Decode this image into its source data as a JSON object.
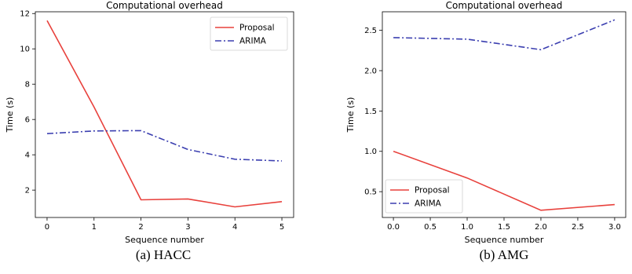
{
  "chart_data": [
    {
      "type": "line",
      "title": "Computational overhead",
      "xlabel": "Sequence number",
      "ylabel": "Time (s)",
      "caption": "(a) HACC",
      "xlim": [
        -0.25,
        5.25
      ],
      "ylim": [
        0.45,
        12.1
      ],
      "xticks": [
        0,
        1,
        2,
        3,
        4,
        5
      ],
      "xtick_labels": [
        "0",
        "1",
        "2",
        "3",
        "4",
        "5"
      ],
      "yticks": [
        2,
        4,
        6,
        8,
        10,
        12
      ],
      "ytick_labels": [
        "2",
        "4",
        "6",
        "8",
        "10",
        "12"
      ],
      "grid": false,
      "legend_position": "top-right",
      "x": [
        0,
        1,
        2,
        3,
        4,
        5
      ],
      "series": [
        {
          "name": "Proposal",
          "color": "#e8413c",
          "style": "solid",
          "values": [
            11.6,
            6.7,
            1.45,
            1.5,
            1.05,
            1.35
          ]
        },
        {
          "name": "ARIMA",
          "color": "#3b3fb0",
          "style": "dashdot",
          "values": [
            5.2,
            5.35,
            5.37,
            4.3,
            3.75,
            3.65
          ]
        }
      ]
    },
    {
      "type": "line",
      "title": "Computational overhead",
      "xlabel": "Sequence number",
      "ylabel": "Time (s)",
      "caption": "(b) AMG",
      "xlim": [
        -0.15,
        3.15
      ],
      "ylim": [
        0.18,
        2.73
      ],
      "xticks": [
        0,
        0.5,
        1,
        1.5,
        2,
        2.5,
        3
      ],
      "xtick_labels": [
        "0.0",
        "0.5",
        "1.0",
        "1.5",
        "2.0",
        "2.5",
        "3.0"
      ],
      "yticks": [
        0.5,
        1.0,
        1.5,
        2.0,
        2.5
      ],
      "ytick_labels": [
        "0.5",
        "1.0",
        "1.5",
        "2.0",
        "2.5"
      ],
      "grid": false,
      "legend_position": "bottom-left",
      "x": [
        0,
        1,
        2,
        3
      ],
      "series": [
        {
          "name": "Proposal",
          "color": "#e8413c",
          "style": "solid",
          "values": [
            1.0,
            0.67,
            0.27,
            0.34
          ]
        },
        {
          "name": "ARIMA",
          "color": "#3b3fb0",
          "style": "dashdot",
          "values": [
            2.41,
            2.39,
            2.26,
            2.63
          ]
        }
      ]
    }
  ]
}
